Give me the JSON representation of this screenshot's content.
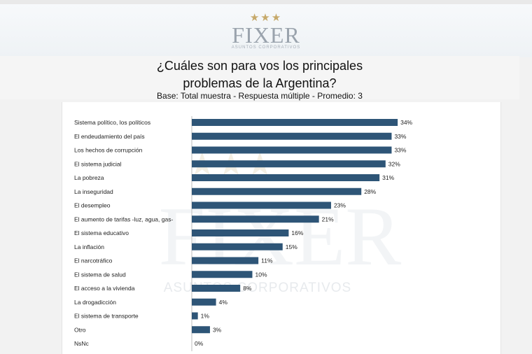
{
  "header": {
    "logo": {
      "stars": "★★★",
      "name": "FIXER",
      "tagline": "ASUNTOS CORPORATIVOS"
    }
  },
  "watermark": {
    "name": "FIXER",
    "tagline": "ASUNTOS CORPORATIVOS"
  },
  "colors": {
    "bar": "#2e5577",
    "background": "#f2f2f2",
    "panel": "#ffffff",
    "gold": "#c6a96a"
  },
  "title": {
    "line1": "¿Cuáles son para vos los principales",
    "line2": "problemas de la Argentina?",
    "subtitle": "Base: Total muestra - Respuesta múltiple - Promedio: 3"
  },
  "chart_data": {
    "type": "bar",
    "orientation": "horizontal",
    "categories": [
      "Sistema político, los políticos",
      "El endeudamiento del país",
      "Los hechos de corrupción",
      "El sistema judicial",
      "La pobreza",
      "La inseguridad",
      "El desempleo",
      "El aumento de tarifas -luz, agua, gas-",
      "El sistema educativo",
      "La inflación",
      "El narcotráfico",
      "El sistema de salud",
      "El acceso a la vivienda",
      "La drogadicción",
      "El sistema de transporte",
      "Otro",
      "NsNc"
    ],
    "values": [
      34,
      33,
      33,
      32,
      31,
      28,
      23,
      21,
      16,
      15,
      11,
      10,
      8,
      4,
      1,
      3,
      0
    ],
    "value_labels": [
      "34%",
      "33%",
      "33%",
      "32%",
      "31%",
      "28%",
      "23%",
      "21%",
      "16%",
      "15%",
      "11%",
      "10%",
      "8%",
      "4%",
      "1%",
      "3%",
      "0%"
    ],
    "xlim": [
      0,
      40
    ],
    "grid": false,
    "legend": "none"
  }
}
